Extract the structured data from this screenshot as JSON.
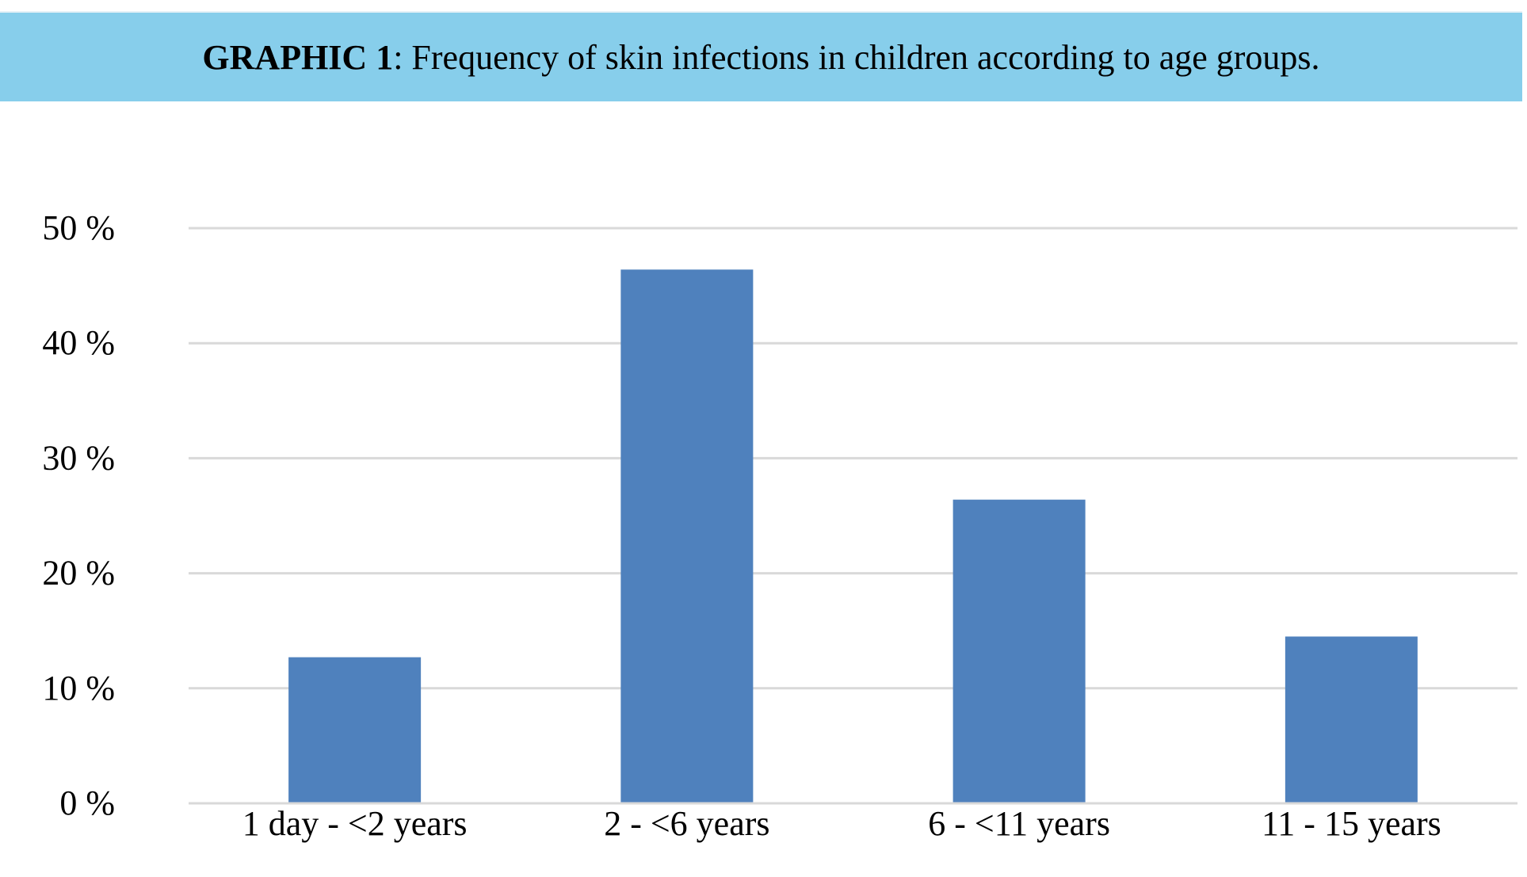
{
  "title": {
    "prefix": "GRAPHIC 1",
    "text": ": Frequency of skin infections in children according to age groups."
  },
  "colors": {
    "banner": "#87CEEB",
    "bar": "#4F81BD",
    "grid": "#D9D9D9"
  },
  "chart_data": {
    "type": "bar",
    "categories": [
      "1 day - <2 years",
      "2 - <6 years",
      "6 - <11 years",
      "11 - 15 years"
    ],
    "values": [
      12.7,
      46.4,
      26.4,
      14.5
    ],
    "y_tick_labels": [
      "0 %",
      "10 %",
      "20 %",
      "30 %",
      "40 %",
      "50 %"
    ],
    "y_ticks": [
      0,
      10,
      20,
      30,
      40,
      50
    ],
    "ylim": [
      0,
      50
    ],
    "xlabel": "",
    "ylabel": "",
    "grid": true,
    "legend": "none"
  }
}
